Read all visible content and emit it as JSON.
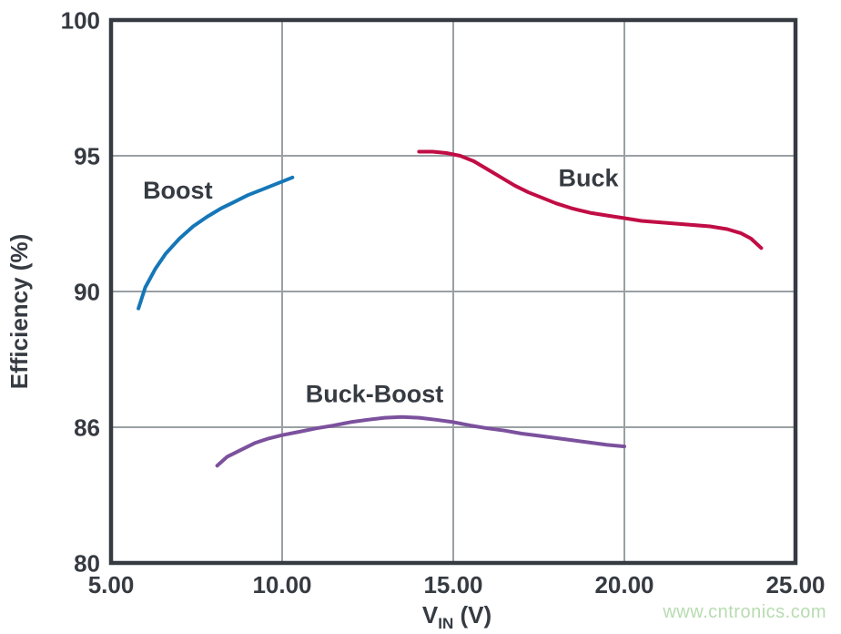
{
  "watermark": {
    "text": "www.cntronics.com",
    "color": "#b7dcb0"
  },
  "chart_data": {
    "type": "line",
    "title": "",
    "xlabel": {
      "pre": "V",
      "sub": "IN",
      "post": " (V)"
    },
    "ylabel": "Efficiency (%)",
    "grid": true,
    "legend_position": "inline-labels",
    "colors": {
      "axis": "#363b42",
      "grid": "#9aa0a4",
      "text": "#363b42",
      "background": "#ffffff"
    },
    "x_axis": {
      "min": 5,
      "max": 25,
      "ticks": [
        {
          "v": 5,
          "label": "5.00"
        },
        {
          "v": 10,
          "label": "10.00"
        },
        {
          "v": 15,
          "label": "15.00"
        },
        {
          "v": 20,
          "label": "20.00"
        },
        {
          "v": 25,
          "label": "25.00"
        }
      ]
    },
    "y_axis": {
      "tick_values": [
        80,
        86,
        90,
        95,
        100
      ],
      "tick_labels": [
        "80",
        "86",
        "90",
        "95",
        "100"
      ],
      "note": "ticks are equally spaced on the axis despite non-uniform values"
    },
    "series": [
      {
        "name": "Boost",
        "color": "#1577b8",
        "label": {
          "text": "Boost",
          "x": 6.95,
          "y": 93.75
        },
        "points": [
          [
            5.8,
            89.5
          ],
          [
            6.0,
            90.15
          ],
          [
            6.3,
            90.85
          ],
          [
            6.6,
            91.4
          ],
          [
            7.0,
            91.95
          ],
          [
            7.4,
            92.4
          ],
          [
            7.8,
            92.75
          ],
          [
            8.2,
            93.05
          ],
          [
            8.6,
            93.3
          ],
          [
            9.0,
            93.55
          ],
          [
            9.4,
            93.75
          ],
          [
            9.8,
            93.95
          ],
          [
            10.1,
            94.1
          ],
          [
            10.3,
            94.2
          ]
        ]
      },
      {
        "name": "Buck",
        "color": "#c10d45",
        "label": {
          "text": "Buck",
          "x": 18.95,
          "y": 94.2
        },
        "points": [
          [
            14.0,
            95.15
          ],
          [
            14.4,
            95.15
          ],
          [
            14.8,
            95.1
          ],
          [
            15.2,
            95.0
          ],
          [
            15.6,
            94.8
          ],
          [
            16.0,
            94.5
          ],
          [
            16.4,
            94.2
          ],
          [
            16.8,
            93.9
          ],
          [
            17.2,
            93.65
          ],
          [
            17.6,
            93.45
          ],
          [
            18.0,
            93.25
          ],
          [
            18.5,
            93.05
          ],
          [
            19.0,
            92.9
          ],
          [
            19.5,
            92.8
          ],
          [
            20.0,
            92.7
          ],
          [
            20.5,
            92.6
          ],
          [
            21.0,
            92.55
          ],
          [
            21.5,
            92.5
          ],
          [
            22.0,
            92.45
          ],
          [
            22.5,
            92.4
          ],
          [
            23.0,
            92.3
          ],
          [
            23.4,
            92.15
          ],
          [
            23.7,
            91.95
          ],
          [
            24.0,
            91.6
          ]
        ]
      },
      {
        "name": "Buck-Boost",
        "color": "#7b519d",
        "label": {
          "text": "Buck-Boost",
          "x": 12.7,
          "y": 87.0
        },
        "points": [
          [
            8.1,
            84.3
          ],
          [
            8.4,
            84.7
          ],
          [
            8.8,
            85.0
          ],
          [
            9.2,
            85.3
          ],
          [
            9.6,
            85.5
          ],
          [
            10.0,
            85.65
          ],
          [
            10.5,
            85.8
          ],
          [
            11.0,
            85.95
          ],
          [
            11.5,
            86.05
          ],
          [
            12.0,
            86.15
          ],
          [
            12.5,
            86.22
          ],
          [
            13.0,
            86.28
          ],
          [
            13.5,
            86.3
          ],
          [
            14.0,
            86.28
          ],
          [
            14.5,
            86.22
          ],
          [
            15.0,
            86.15
          ],
          [
            15.5,
            86.05
          ],
          [
            16.0,
            85.95
          ],
          [
            16.5,
            85.85
          ],
          [
            17.0,
            85.72
          ],
          [
            17.5,
            85.62
          ],
          [
            18.0,
            85.52
          ],
          [
            18.5,
            85.42
          ],
          [
            19.0,
            85.32
          ],
          [
            19.5,
            85.22
          ],
          [
            20.0,
            85.15
          ]
        ]
      }
    ]
  }
}
